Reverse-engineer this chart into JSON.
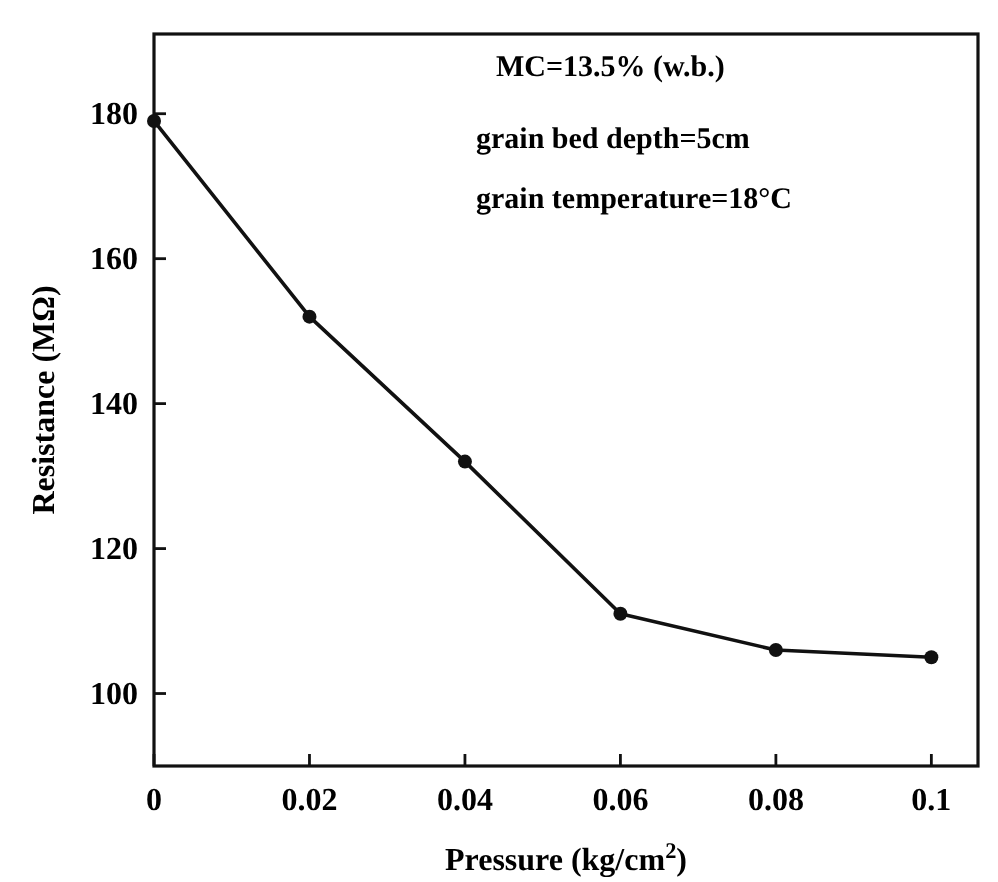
{
  "chart_data": {
    "type": "line",
    "xlabel": "Pressure (kg/cm$^{2}$)",
    "ylabel": "Resistance (MΩ)",
    "annotations": [
      "MC=13.5% (w.b.)",
      "grain bed depth=5cm",
      "grain temperature=18°C"
    ],
    "x": [
      0,
      0.02,
      0.04,
      0.06,
      0.08,
      0.1
    ],
    "series": [
      {
        "color": "#111111",
        "values": [
          179,
          152,
          132,
          111,
          106,
          105
        ]
      }
    ],
    "xlim": [
      0,
      0.106
    ],
    "xticks": [
      0,
      0.02,
      0.04,
      0.06,
      0.08,
      0.1
    ],
    "ylim": [
      90,
      191
    ],
    "yticks": [
      100,
      120,
      140,
      160,
      180
    ],
    "marker": "circle",
    "line_style": "solid"
  }
}
